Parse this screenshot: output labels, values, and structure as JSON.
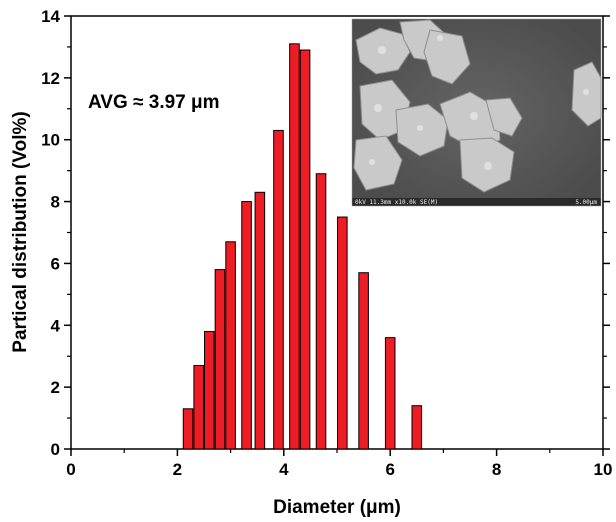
{
  "chart_data": {
    "type": "bar",
    "xlabel": "Diameter (μm)",
    "ylabel": "Partical distribution (Vol%)",
    "xlim": [
      0,
      10
    ],
    "ylim": [
      0,
      14
    ],
    "xticks": [
      "0",
      "2",
      "4",
      "6",
      "8",
      "10"
    ],
    "yticks": [
      "0",
      "2",
      "4",
      "6",
      "8",
      "10",
      "12",
      "14"
    ],
    "annotation": "AVG ≈ 3.97 μm",
    "bar_color": "#ee1c25",
    "x": [
      2.2,
      2.4,
      2.6,
      2.8,
      3.0,
      3.3,
      3.55,
      3.9,
      4.2,
      4.4,
      4.7,
      5.1,
      5.5,
      6.0,
      6.5
    ],
    "values": [
      1.3,
      2.7,
      3.8,
      5.8,
      6.7,
      8.0,
      8.3,
      10.3,
      13.1,
      12.9,
      8.9,
      7.5,
      5.7,
      3.6,
      1.4
    ],
    "bar_width": 0.18,
    "grid": false
  },
  "inset": {
    "caption_left": "0kV 11.3mm x10.0k SE(M)",
    "caption_right": "5.00μm"
  }
}
